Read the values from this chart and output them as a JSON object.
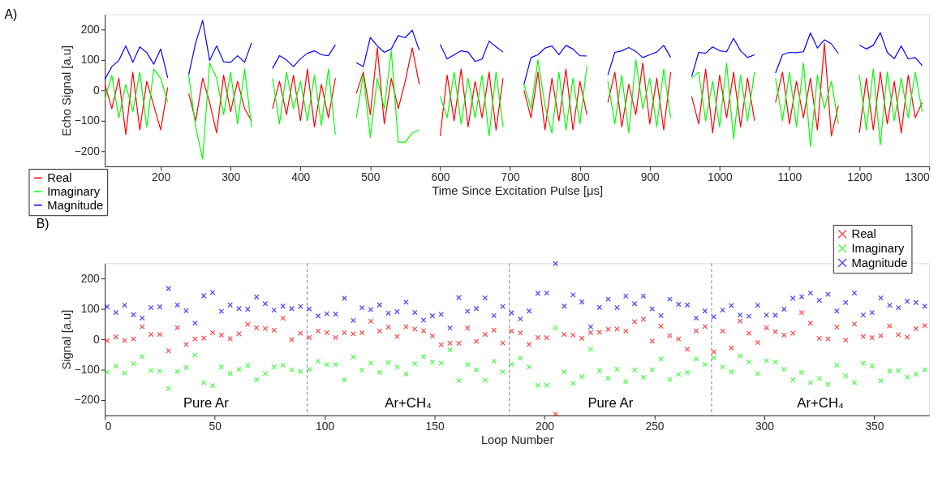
{
  "chart_data": [
    {
      "type": "line",
      "title": "A)",
      "xlabel": "Time Since Excitation Pulse [μs]",
      "ylabel": "Echo Signal [a.u]",
      "xlim": [
        120,
        1300
      ],
      "xticks": [
        200,
        300,
        400,
        500,
        600,
        700,
        800,
        900,
        1000,
        1100,
        1200,
        1300
      ],
      "ylim": [
        -250,
        250
      ],
      "yticks": [
        -200,
        -100,
        0,
        100,
        200
      ],
      "grid": false,
      "legend": "bottom left",
      "line_style": "solid",
      "x": [
        120,
        130,
        140,
        150,
        160,
        170,
        180,
        190,
        200,
        210,
        220,
        240,
        250,
        260,
        270,
        280,
        290,
        300,
        310,
        320,
        330,
        340,
        360,
        370,
        380,
        390,
        400,
        410,
        420,
        430,
        440,
        450,
        460,
        480,
        490,
        500,
        510,
        520,
        530,
        540,
        550,
        560,
        570,
        580,
        600,
        610,
        620,
        630,
        640,
        650,
        660,
        670,
        680,
        690,
        700,
        720,
        730,
        740,
        750,
        760,
        770,
        780,
        790,
        800,
        810,
        820,
        840,
        850,
        860,
        870,
        880,
        890,
        900,
        910,
        920,
        930,
        940,
        960,
        970,
        980,
        990,
        1000,
        1010,
        1020,
        1030,
        1040,
        1050,
        1060,
        1080,
        1090,
        1100,
        1110,
        1120,
        1130,
        1140,
        1150,
        1160,
        1170,
        1180,
        1200,
        1210,
        1220,
        1230,
        1240,
        1250,
        1260,
        1270,
        1280,
        1290
      ],
      "series": [
        {
          "name": "Real",
          "color": "#ff0000",
          "values": [
            20,
            -60,
            40,
            -145,
            60,
            -130,
            30,
            -50,
            -130,
            10,
            null,
            -10,
            -100,
            40,
            -40,
            -140,
            50,
            -70,
            30,
            -60,
            -100,
            null,
            -60,
            30,
            -80,
            50,
            -100,
            70,
            -120,
            20,
            -90,
            40,
            null,
            -10,
            60,
            -80,
            140,
            -110,
            40,
            -60,
            30,
            140,
            20,
            null,
            -150,
            50,
            -100,
            70,
            -120,
            30,
            -90,
            60,
            -130,
            40,
            null,
            0,
            -90,
            60,
            -130,
            40,
            -100,
            70,
            -130,
            30,
            -80,
            null,
            -40,
            60,
            -120,
            20,
            -80,
            90,
            -110,
            40,
            -130,
            60,
            null,
            -20,
            -110,
            70,
            -140,
            50,
            -90,
            60,
            -120,
            40,
            -100,
            null,
            -40,
            60,
            -110,
            30,
            -90,
            40,
            -130,
            155,
            -150,
            -50,
            null,
            -140,
            40,
            -130,
            60,
            -110,
            30,
            -140,
            50,
            -90,
            -40
          ]
        },
        {
          "name": "Imaginary",
          "color": "#00ff00",
          "values": [
            -30,
            50,
            -90,
            20,
            -70,
            60,
            -120,
            70,
            40,
            -40,
            null,
            50,
            -120,
            -226,
            90,
            40,
            -80,
            60,
            -110,
            70,
            -120,
            null,
            40,
            -110,
            60,
            -60,
            30,
            -100,
            50,
            -115,
            70,
            -145,
            null,
            -90,
            50,
            -155,
            40,
            -60,
            130,
            -170,
            -170,
            -140,
            -130,
            null,
            -20,
            -90,
            60,
            -110,
            40,
            -90,
            50,
            -150,
            60,
            -120,
            null,
            20,
            -60,
            100,
            -50,
            -140,
            60,
            -130,
            40,
            -110,
            80,
            null,
            30,
            -110,
            50,
            -140,
            100,
            -60,
            40,
            -120,
            70,
            -90,
            null,
            40,
            60,
            -100,
            30,
            -120,
            90,
            -160,
            50,
            -100,
            60,
            null,
            40,
            -100,
            60,
            -120,
            90,
            -185,
            50,
            -60,
            30,
            -110,
            null,
            50,
            -130,
            70,
            -180,
            60,
            -100,
            40,
            -90,
            60,
            -70
          ]
        },
        {
          "name": "Magnitude",
          "color": "#0000ff",
          "values": [
            36,
            78,
            98,
            146,
            92,
            143,
            124,
            86,
            136,
            41,
            null,
            51,
            156,
            230,
            98,
            146,
            94,
            92,
            114,
            92,
            156,
            null,
            72,
            114,
            100,
            78,
            104,
            122,
            130,
            117,
            114,
            150,
            null,
            91,
            78,
            174,
            146,
            125,
            136,
            180,
            173,
            198,
            132,
            null,
            151,
            103,
            117,
            130,
            126,
            95,
            103,
            162,
            143,
            126,
            null,
            20,
            108,
            117,
            139,
            146,
            117,
            148,
            136,
            114,
            113,
            null,
            50,
            125,
            130,
            141,
            128,
            108,
            117,
            126,
            148,
            108,
            null,
            45,
            125,
            122,
            143,
            130,
            127,
            171,
            130,
            108,
            117,
            null,
            57,
            117,
            125,
            124,
            127,
            189,
            139,
            166,
            153,
            121,
            null,
            149,
            136,
            148,
            190,
            125,
            104,
            146,
            103,
            108,
            81
          ]
        }
      ]
    },
    {
      "type": "scatter",
      "title": "B)",
      "xlabel": "Loop Number",
      "ylabel": "Signal [a.u]",
      "xlim": [
        0,
        375
      ],
      "xticks": [
        0,
        50,
        100,
        150,
        200,
        250,
        300,
        350
      ],
      "ylim": [
        -250,
        250
      ],
      "yticks": [
        -200,
        -100,
        0,
        100,
        200
      ],
      "grid": false,
      "legend": "top right",
      "marker": "cross",
      "x": [
        1,
        5,
        9,
        13,
        17,
        21,
        25,
        29,
        33,
        37,
        41,
        45,
        49,
        53,
        57,
        61,
        65,
        69,
        73,
        77,
        81,
        85,
        89,
        93,
        97,
        101,
        105,
        109,
        113,
        117,
        121,
        125,
        129,
        133,
        137,
        141,
        145,
        149,
        153,
        157,
        161,
        165,
        169,
        173,
        177,
        181,
        185,
        189,
        193,
        197,
        201,
        205,
        209,
        213,
        217,
        221,
        225,
        229,
        233,
        237,
        241,
        245,
        249,
        253,
        257,
        261,
        265,
        269,
        273,
        277,
        281,
        285,
        289,
        293,
        297,
        301,
        305,
        309,
        313,
        317,
        321,
        325,
        329,
        333,
        337,
        341,
        345,
        349,
        353,
        357,
        361,
        365,
        369,
        373
      ],
      "series": [
        {
          "name": "Real",
          "color": "#ff0000",
          "values": [
            -5,
            8,
            -4,
            1,
            41,
            16,
            16,
            -38,
            38,
            -17,
            1,
            4,
            22,
            14,
            2,
            18,
            49,
            38,
            35,
            30,
            69,
            -1,
            20,
            6,
            27,
            22,
            6,
            22,
            18,
            22,
            59,
            27,
            40,
            9,
            41,
            34,
            28,
            11,
            -18,
            -13,
            -13,
            37,
            -7,
            16,
            30,
            -12,
            27,
            21,
            -17,
            6,
            5,
            -246,
            16,
            14,
            3,
            22,
            23,
            33,
            34,
            27,
            58,
            66,
            -6,
            43,
            12,
            1,
            -33,
            28,
            42,
            -41,
            27,
            -28,
            60,
            20,
            -11,
            38,
            25,
            14,
            20,
            88,
            53,
            3,
            1,
            40,
            -3,
            50,
            9,
            5,
            12,
            44,
            15,
            7,
            35,
            45
          ]
        },
        {
          "name": "Imaginary",
          "color": "#00ff00",
          "values": [
            -108,
            -88,
            -111,
            -80,
            -57,
            -102,
            -105,
            -162,
            -106,
            -93,
            -52,
            -143,
            -152,
            -91,
            -112,
            -99,
            -86,
            -133,
            -112,
            -91,
            -85,
            -100,
            -106,
            -99,
            -72,
            -83,
            -83,
            -133,
            -58,
            -101,
            -78,
            -109,
            -77,
            -90,
            -114,
            -80,
            -57,
            -75,
            -79,
            -35,
            -136,
            -83,
            -100,
            -135,
            -72,
            -107,
            -82,
            -62,
            -91,
            -151,
            -151,
            38,
            -107,
            -145,
            -123,
            -33,
            -103,
            -128,
            -98,
            -139,
            -101,
            -125,
            -100,
            -65,
            -132,
            -115,
            -109,
            -65,
            -83,
            -61,
            -91,
            -107,
            -54,
            -74,
            -112,
            -70,
            -75,
            -98,
            -133,
            -109,
            -142,
            -129,
            -148,
            -85,
            -120,
            -143,
            -79,
            -88,
            -136,
            -104,
            -103,
            -124,
            -115,
            -100
          ]
        },
        {
          "name": "Magnitude",
          "color": "#0000ff",
          "values": [
            107,
            88,
            112,
            81,
            70,
            104,
            107,
            167,
            113,
            94,
            53,
            143,
            154,
            92,
            113,
            101,
            99,
            139,
            117,
            96,
            109,
            101,
            108,
            100,
            77,
            84,
            83,
            135,
            62,
            104,
            98,
            113,
            86,
            91,
            122,
            88,
            63,
            77,
            82,
            37,
            137,
            92,
            101,
            136,
            78,
            108,
            87,
            67,
            93,
            151,
            152,
            249,
            109,
            146,
            123,
            41,
            105,
            132,
            104,
            142,
            117,
            142,
            100,
            78,
            132,
            115,
            113,
            70,
            93,
            74,
            96,
            111,
            80,
            76,
            112,
            80,
            79,
            99,
            135,
            140,
            152,
            128,
            148,
            93,
            121,
            152,
            80,
            88,
            136,
            112,
            104,
            125,
            121,
            109
          ]
        }
      ],
      "ref_lines": [
        {
          "axis": "x",
          "value": 92,
          "color": "#808080",
          "line_style": "dashed"
        },
        {
          "axis": "x",
          "value": 184,
          "color": "#808080",
          "line_style": "dashed"
        },
        {
          "axis": "x",
          "value": 276,
          "color": "#808080",
          "line_style": "dashed"
        }
      ],
      "annotations": [
        "Pure Ar",
        "Ar+CH₄",
        "Pure Ar",
        "Ar+CH₄"
      ]
    }
  ]
}
